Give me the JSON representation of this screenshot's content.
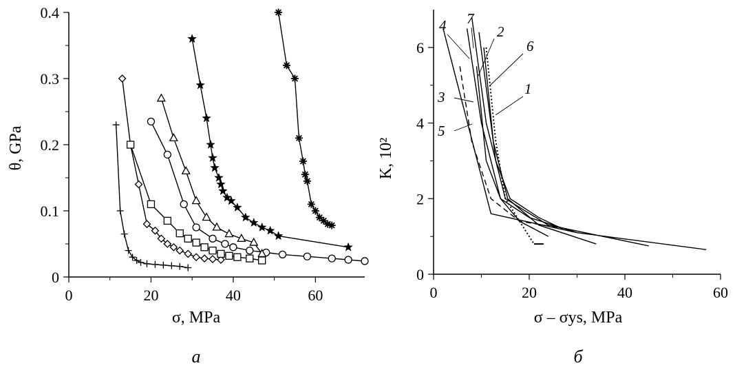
{
  "panels": {
    "left_letter": "a",
    "right_letter": "б"
  },
  "chart_data": [
    {
      "type": "line",
      "xlabel": "σ, MPa",
      "ylabel": "θ, GPa",
      "xlim": [
        0,
        72
      ],
      "ylim": [
        0,
        0.4
      ],
      "xticks": [
        0,
        20,
        40,
        60
      ],
      "xtick_labels": [
        "0",
        "20",
        "40",
        "60"
      ],
      "yticks": [
        0,
        0.1,
        0.2,
        0.3,
        0.4
      ],
      "ytick_labels": [
        "0",
        "0.1",
        "0.2",
        "0.3",
        "0.4"
      ],
      "grid": false,
      "series": [
        {
          "marker": "plus",
          "x": [
            11.5,
            12.5,
            13.5,
            14.5,
            15.5,
            16.5,
            17.5,
            19,
            21,
            23,
            25,
            27,
            29
          ],
          "y": [
            0.23,
            0.1,
            0.065,
            0.04,
            0.03,
            0.025,
            0.022,
            0.02,
            0.019,
            0.018,
            0.017,
            0.016,
            0.014
          ]
        },
        {
          "marker": "diamond",
          "x": [
            13,
            15,
            17,
            19,
            21,
            22.5,
            24,
            25.5,
            27,
            29,
            31,
            33,
            35,
            37
          ],
          "y": [
            0.3,
            0.2,
            0.14,
            0.08,
            0.07,
            0.058,
            0.05,
            0.045,
            0.04,
            0.035,
            0.03,
            0.028,
            0.027,
            0.026
          ]
        },
        {
          "marker": "square",
          "x": [
            15,
            20,
            24,
            27,
            29,
            31,
            33,
            35,
            37,
            39,
            41,
            44,
            47
          ],
          "y": [
            0.2,
            0.11,
            0.085,
            0.066,
            0.058,
            0.052,
            0.045,
            0.04,
            0.035,
            0.032,
            0.03,
            0.028,
            0.025
          ]
        },
        {
          "marker": "circle",
          "x": [
            20,
            24,
            28,
            31,
            35,
            38,
            40,
            44,
            48,
            52,
            58,
            64,
            68,
            72
          ],
          "y": [
            0.235,
            0.185,
            0.11,
            0.075,
            0.058,
            0.05,
            0.045,
            0.04,
            0.037,
            0.034,
            0.031,
            0.028,
            0.026,
            0.024
          ]
        },
        {
          "marker": "triangle",
          "x": [
            22.5,
            25.5,
            28.5,
            31,
            33.5,
            36,
            39,
            42,
            45,
            47
          ],
          "y": [
            0.27,
            0.21,
            0.16,
            0.115,
            0.09,
            0.075,
            0.065,
            0.058,
            0.052,
            0.035
          ]
        },
        {
          "marker": "star",
          "x": [
            30,
            32,
            33.5,
            34.5,
            35,
            35.5,
            36.5,
            37,
            37.5,
            38.5,
            39.5,
            41,
            43,
            45,
            47,
            49,
            51,
            68
          ],
          "y": [
            0.36,
            0.29,
            0.24,
            0.2,
            0.18,
            0.165,
            0.15,
            0.14,
            0.13,
            0.12,
            0.115,
            0.105,
            0.09,
            0.082,
            0.075,
            0.07,
            0.062,
            0.045
          ]
        },
        {
          "marker": "asterisk",
          "x": [
            51,
            53,
            55,
            56,
            57,
            57.5,
            58,
            59,
            60,
            61,
            62,
            63,
            64
          ],
          "y": [
            0.4,
            0.32,
            0.3,
            0.21,
            0.175,
            0.155,
            0.145,
            0.11,
            0.1,
            0.09,
            0.085,
            0.08,
            0.078
          ]
        }
      ]
    },
    {
      "type": "line",
      "xlabel": "σ – σys, MPa",
      "ylabel": "K, 10²",
      "xlim": [
        0,
        60
      ],
      "ylim": [
        0,
        7
      ],
      "xticks": [
        0,
        20,
        40,
        60
      ],
      "xtick_labels": [
        "0",
        "20",
        "40",
        "60"
      ],
      "yticks": [
        0,
        2,
        4,
        6
      ],
      "ytick_labels": [
        "0",
        "2",
        "4",
        "6"
      ],
      "grid": false,
      "series": [
        {
          "name": "1",
          "dash": "dot",
          "x": [
            11,
            13,
            15,
            19,
            21
          ],
          "y": [
            6,
            3.5,
            2,
            1.2,
            0.8
          ]
        },
        {
          "name": "2",
          "dash": "solid",
          "x": [
            9.5,
            13,
            16,
            22,
            27
          ],
          "y": [
            6.4,
            3,
            2,
            1.5,
            1.2
          ]
        },
        {
          "name": "3",
          "dash": "solid",
          "x": [
            9,
            11,
            14,
            18,
            24
          ],
          "y": [
            5.5,
            3,
            2,
            1.4,
            1.0
          ]
        },
        {
          "name": "4",
          "dash": "solid",
          "x": [
            7,
            10,
            14,
            20,
            30
          ],
          "y": [
            6.5,
            4,
            2,
            1.5,
            1.1
          ]
        },
        {
          "name": "5",
          "dash": "dash",
          "x": [
            5.5,
            8,
            12,
            18,
            28
          ],
          "y": [
            5.5,
            3.5,
            2,
            1.4,
            1.2
          ]
        },
        {
          "name": "6",
          "dash": "solid",
          "x": [
            10.5,
            12.5,
            15.5,
            22,
            34
          ],
          "y": [
            6,
            3.5,
            2,
            1.3,
            0.8
          ]
        },
        {
          "name": "7",
          "dash": "solid",
          "x": [
            8,
            11,
            15,
            24,
            45
          ],
          "y": [
            6.8,
            4,
            2,
            1.3,
            0.75
          ]
        },
        {
          "name": "",
          "dash": "solid",
          "x": [
            2,
            12,
            30,
            57
          ],
          "y": [
            6.5,
            1.6,
            1.1,
            0.65
          ]
        }
      ],
      "annotations": [
        "1",
        "2",
        "3",
        "4",
        "5",
        "6",
        "7"
      ]
    }
  ]
}
